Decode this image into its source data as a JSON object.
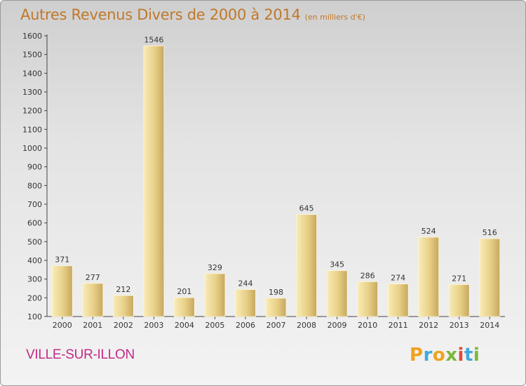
{
  "chart_data": {
    "type": "bar",
    "title": "Autres Revenus Divers de 2000 à 2014",
    "subtitle": "(en milliers d'€)",
    "categories": [
      "2000",
      "2001",
      "2002",
      "2003",
      "2004",
      "2005",
      "2006",
      "2007",
      "2008",
      "2009",
      "2010",
      "2011",
      "2012",
      "2013",
      "2014"
    ],
    "values": [
      371,
      277,
      212,
      1546,
      201,
      329,
      244,
      198,
      645,
      345,
      286,
      274,
      524,
      271,
      516
    ],
    "ylim": [
      100,
      1600
    ],
    "yticks": [
      100,
      200,
      300,
      400,
      500,
      600,
      700,
      800,
      900,
      1000,
      1100,
      1200,
      1300,
      1400,
      1500,
      1600
    ],
    "xlabel": "",
    "ylabel": "",
    "grid": false,
    "legend": "none",
    "colors": {
      "title": "#c0782a",
      "bar_light": "#f7e6a6",
      "bar_dark": "#c8aa62",
      "commune": "#c22a86"
    }
  },
  "commune": "VILLE-SUR-ILLON",
  "logo": {
    "letters": [
      "P",
      "r",
      "o",
      "x",
      "i",
      "t",
      "i"
    ],
    "colors": [
      "#f0a21e",
      "#3fa9dc",
      "#f0a21e",
      "#7ab83a",
      "#e0483a",
      "#3fa9dc",
      "#7ab83a"
    ]
  }
}
